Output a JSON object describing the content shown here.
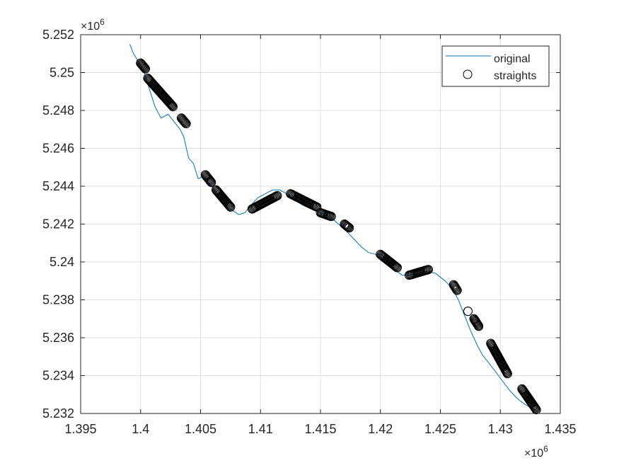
{
  "chart_data": {
    "type": "line",
    "xlim": [
      1.395,
      1.435
    ],
    "ylim": [
      5.232,
      5.252
    ],
    "x_ticks": [
      "1.395",
      "1.4",
      "1.405",
      "1.41",
      "1.415",
      "1.42",
      "1.425",
      "1.43",
      "1.435"
    ],
    "y_ticks": [
      "5.232",
      "5.234",
      "5.236",
      "5.238",
      "5.24",
      "5.242",
      "5.244",
      "5.246",
      "5.248",
      "5.25",
      "5.252"
    ],
    "x_multiplier_base": "×10",
    "x_multiplier_exp": "6",
    "y_multiplier_base": "×10",
    "y_multiplier_exp": "6",
    "grid": true,
    "legend_position": "top-right",
    "colors": {
      "original": "#0072BD",
      "straights": "#000000",
      "grid": "#dfdfdf",
      "axes": "#262626"
    },
    "series": [
      {
        "name": "original",
        "style": "line",
        "x": [
          1.3991,
          1.3994,
          1.3998,
          1.4003,
          1.4008,
          1.4012,
          1.4017,
          1.4023,
          1.4028,
          1.4033,
          1.4036,
          1.404,
          1.4044,
          1.4048,
          1.4052,
          1.4058,
          1.4064,
          1.407,
          1.4077,
          1.4082,
          1.4087,
          1.4092,
          1.4098,
          1.4104,
          1.411,
          1.4116,
          1.4122,
          1.4128,
          1.4135,
          1.4142,
          1.415,
          1.4158,
          1.4165,
          1.4172,
          1.4178,
          1.4184,
          1.419,
          1.4196,
          1.4201,
          1.4206,
          1.4212,
          1.4218,
          1.4224,
          1.423,
          1.4238,
          1.4246,
          1.4254,
          1.426,
          1.4265,
          1.427,
          1.4275,
          1.428,
          1.4285,
          1.429,
          1.4296,
          1.4302,
          1.4308,
          1.4314,
          1.432,
          1.4326,
          1.4331
        ],
        "y": [
          5.2515,
          5.251,
          5.2506,
          5.25,
          5.249,
          5.2482,
          5.2476,
          5.2478,
          5.2474,
          5.247,
          5.2466,
          5.2455,
          5.2452,
          5.2444,
          5.2445,
          5.2441,
          5.2436,
          5.243,
          5.2427,
          5.2425,
          5.2426,
          5.243,
          5.2434,
          5.2436,
          5.2438,
          5.2438,
          5.2436,
          5.2433,
          5.243,
          5.2428,
          5.2426,
          5.2424,
          5.242,
          5.2416,
          5.2412,
          5.2408,
          5.2405,
          5.2404,
          5.2404,
          5.24,
          5.2396,
          5.2393,
          5.2393,
          5.2394,
          5.2395,
          5.2394,
          5.239,
          5.2386,
          5.238,
          5.2372,
          5.2364,
          5.2357,
          5.2351,
          5.2347,
          5.2342,
          5.2337,
          5.2332,
          5.2328,
          5.2325,
          5.2323,
          5.2321
        ]
      },
      {
        "name": "straights",
        "style": "markers",
        "segments": [
          {
            "x": [
              1.4,
              1.4004
            ],
            "y": [
              5.2505,
              5.2502
            ]
          },
          {
            "x": [
              1.4006,
              1.4027
            ],
            "y": [
              5.2497,
              5.2482
            ]
          },
          {
            "x": [
              1.4034,
              1.4038
            ],
            "y": [
              5.2476,
              5.2473
            ]
          },
          {
            "x": [
              1.4054,
              1.4059
            ],
            "y": [
              5.2446,
              5.2442
            ]
          },
          {
            "x": [
              1.4063,
              1.4075
            ],
            "y": [
              5.2438,
              5.2429
            ]
          },
          {
            "x": [
              1.4093,
              1.4114
            ],
            "y": [
              5.2428,
              5.2435
            ]
          },
          {
            "x": [
              1.4125,
              1.4147
            ],
            "y": [
              5.2436,
              5.2429
            ]
          },
          {
            "x": [
              1.415,
              1.4159
            ],
            "y": [
              5.2426,
              5.2424
            ]
          },
          {
            "x": [
              1.417,
              1.4174
            ],
            "y": [
              5.242,
              5.2418
            ]
          },
          {
            "x": [
              1.42,
              1.4214
            ],
            "y": [
              5.2404,
              5.2397
            ]
          },
          {
            "x": [
              1.4224,
              1.424
            ],
            "y": [
              5.2393,
              5.2396
            ]
          },
          {
            "x": [
              1.4261,
              1.4264
            ],
            "y": [
              5.2388,
              5.2385
            ]
          },
          {
            "x": [
              1.4273,
              1.4273
            ],
            "y": [
              5.2374,
              5.2374
            ]
          },
          {
            "x": [
              1.4278,
              1.4282
            ],
            "y": [
              5.237,
              5.2366
            ]
          },
          {
            "x": [
              1.4292,
              1.4306
            ],
            "y": [
              5.2357,
              5.2341
            ]
          },
          {
            "x": [
              1.4318,
              1.433
            ],
            "y": [
              5.2333,
              5.2322
            ]
          }
        ]
      }
    ]
  }
}
